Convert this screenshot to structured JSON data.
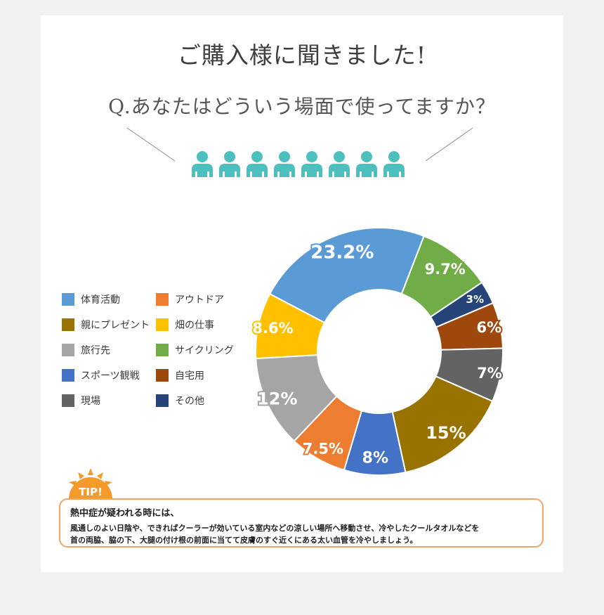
{
  "page": {
    "title": "ご購入様に聞きました!",
    "question": "Q.あなたはどういう場面で使ってますか？"
  },
  "chart_data": {
    "type": "pie",
    "style": "donut",
    "slices": [
      {
        "label": "体育活動",
        "value": 23.2,
        "display": "23.2%",
        "color": "#5b9bd5"
      },
      {
        "label": "サイクリング",
        "value": 9.7,
        "display": "9.7%",
        "color": "#70ad47"
      },
      {
        "label": "その他",
        "value": 3,
        "display": "3%",
        "color": "#264478"
      },
      {
        "label": "自宅用",
        "value": 6,
        "display": "6%",
        "color": "#9e480e"
      },
      {
        "label": "現場",
        "value": 7,
        "display": "7%",
        "color": "#636363"
      },
      {
        "label": "親にプレゼント",
        "value": 15,
        "display": "15%",
        "color": "#997300"
      },
      {
        "label": "スポーツ観戦",
        "value": 8,
        "display": "8%",
        "color": "#4472c4"
      },
      {
        "label": "アウトドア",
        "value": 7.5,
        "display": "7.5%",
        "color": "#ed7d31"
      },
      {
        "label": "旅行先",
        "value": 12,
        "display": "12%",
        "color": "#a5a5a5"
      },
      {
        "label": "畑の仕事",
        "value": 8.6,
        "display": "8.6%",
        "color": "#ffc000"
      }
    ],
    "legend_placement": "left",
    "legend": [
      {
        "label": "体育活動",
        "color": "#5b9bd5"
      },
      {
        "label": "アウトドア",
        "color": "#ed7d31"
      },
      {
        "label": "親にプレゼント",
        "color": "#997300"
      },
      {
        "label": "畑の仕事",
        "color": "#ffc000"
      },
      {
        "label": "旅行先",
        "color": "#a5a5a5"
      },
      {
        "label": "サイクリング",
        "color": "#70ad47"
      },
      {
        "label": "スポーツ観戦",
        "color": "#4472c4"
      },
      {
        "label": "自宅用",
        "color": "#9e480e"
      },
      {
        "label": "現場",
        "color": "#636363"
      },
      {
        "label": "その他",
        "color": "#264478"
      }
    ]
  },
  "tip": {
    "badge": "TIP!",
    "heading": "熱中症が疑われる時には、",
    "line1": "風通しのよい日陰や、できればクーラーが効いている室内などの涼しい場所へ移動させ、冷やしたクールタオルなどを",
    "line2": "首の両脇、脇の下、大腿の付け根の前面に当てて皮膚のすぐ近くにある太い血管を冷やしましょう。"
  },
  "icons": {
    "people": "person-icon",
    "tip_badge": "sunburst-icon"
  },
  "colors": {
    "people": "#4ebfbf",
    "tip_border": "#f0a468",
    "tip_badge": "#f39a2a"
  }
}
